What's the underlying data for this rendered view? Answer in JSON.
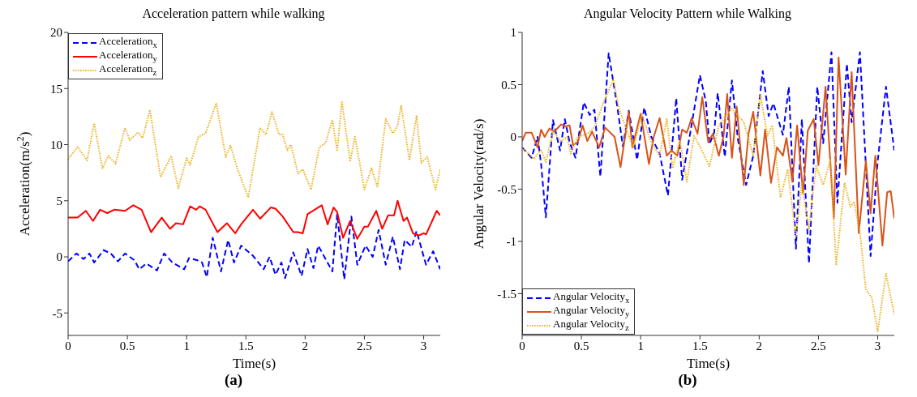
{
  "chart_data": [
    {
      "type": "line",
      "title": "Acceleration pattern while walking",
      "xlabel": "Time(s)",
      "ylabel": "Acceleration(m/s$^{2}$)",
      "xlim": [
        0,
        3.14
      ],
      "xticks": [
        0,
        0.5,
        1,
        1.5,
        2,
        2.5,
        3
      ],
      "ylim": [
        -7,
        20
      ],
      "yticks": [
        -5,
        0,
        5,
        10,
        15,
        20
      ],
      "grid": false,
      "legend": "top left",
      "marker": "none",
      "annotations": [
        "(a)"
      ],
      "series": [
        {
          "name": "Acceleration$_{x}$",
          "color": "#0000ff",
          "line_style": "dashed",
          "x": [
            0,
            0.07,
            0.13,
            0.18,
            0.22,
            0.3,
            0.36,
            0.42,
            0.48,
            0.56,
            0.6,
            0.66,
            0.75,
            0.81,
            0.88,
            0.98,
            1.02,
            1.09,
            1.13,
            1.17,
            1.22,
            1.29,
            1.35,
            1.4,
            1.46,
            1.56,
            1.65,
            1.7,
            1.75,
            1.8,
            1.83,
            1.9,
            1.97,
            2.02,
            2.07,
            2.11,
            2.23,
            2.27,
            2.33,
            2.39,
            2.44,
            2.51,
            2.57,
            2.62,
            2.68,
            2.74,
            2.8,
            2.84,
            2.9,
            2.94,
            3.02,
            3.08,
            3.14
          ],
          "values": [
            -0.4,
            0.3,
            -0.2,
            0.3,
            -0.5,
            0.6,
            0.3,
            -0.4,
            0.3,
            -0.3,
            -1.1,
            -0.6,
            -1.2,
            0.3,
            -0.5,
            -1.1,
            -0.1,
            -0.3,
            -0.5,
            -1.8,
            1.7,
            -1.3,
            1.5,
            -0.5,
            1,
            0.1,
            -1.1,
            0,
            -1.6,
            -0.5,
            -1.9,
            0.4,
            -1.7,
            0.7,
            -1,
            1,
            -1.3,
            3.8,
            -2,
            3.6,
            -0.7,
            1,
            0,
            2.4,
            -0.7,
            1.8,
            -1.1,
            1.5,
            0.9,
            2.3,
            -0.7,
            0.5,
            -1.1
          ]
        },
        {
          "name": "Acceleration$_{y}$",
          "color": "#ff0000",
          "line_style": "solid",
          "x": [
            0,
            0.08,
            0.15,
            0.21,
            0.27,
            0.33,
            0.39,
            0.48,
            0.55,
            0.62,
            0.7,
            0.79,
            0.86,
            0.91,
            0.97,
            1.03,
            1.08,
            1.11,
            1.16,
            1.26,
            1.34,
            1.41,
            1.46,
            1.56,
            1.62,
            1.71,
            1.75,
            1.81,
            1.9,
            1.94,
            1.98,
            2.02,
            2.08,
            2.14,
            2.19,
            2.24,
            2.27,
            2.32,
            2.38,
            2.44,
            2.5,
            2.53,
            2.6,
            2.65,
            2.7,
            2.75,
            2.78,
            2.83,
            2.86,
            2.91,
            2.96,
            3,
            3.02,
            3.11,
            3.14
          ],
          "values": [
            3.5,
            3.5,
            4.1,
            3.2,
            4.2,
            3.9,
            4.2,
            4.1,
            4.6,
            4.2,
            2.2,
            3.5,
            2.5,
            3,
            2.9,
            4.5,
            4.2,
            4.5,
            4.2,
            2.2,
            3,
            2.1,
            2.9,
            4.2,
            3.4,
            4.4,
            4.3,
            3.6,
            2.2,
            2.2,
            2.1,
            3.8,
            4.2,
            4.6,
            2.9,
            4.4,
            4,
            1.7,
            3.2,
            1.6,
            2.7,
            2.7,
            4.1,
            2.5,
            3.7,
            3.7,
            5,
            3.2,
            3.5,
            2.1,
            1.9,
            2.1,
            2,
            4.1,
            3.7
          ]
        },
        {
          "name": "Acceleration$_{z}$",
          "color": "#edb120",
          "line_style": "dotted",
          "x": [
            0,
            0.08,
            0.16,
            0.22,
            0.29,
            0.34,
            0.4,
            0.48,
            0.52,
            0.59,
            0.63,
            0.69,
            0.78,
            0.87,
            0.93,
            1,
            1.03,
            1.1,
            1.16,
            1.25,
            1.33,
            1.37,
            1.43,
            1.52,
            1.62,
            1.67,
            1.72,
            1.78,
            1.81,
            1.85,
            1.88,
            1.94,
            1.98,
            2.05,
            2.12,
            2.17,
            2.23,
            2.27,
            2.31,
            2.38,
            2.42,
            2.5,
            2.56,
            2.61,
            2.68,
            2.74,
            2.78,
            2.81,
            2.88,
            2.94,
            2.98,
            3.03,
            3.1,
            3.14
          ],
          "values": [
            8.7,
            9.8,
            8.6,
            11.9,
            7.9,
            9,
            8.3,
            11.5,
            10.4,
            11.1,
            10.6,
            13.1,
            7.1,
            9,
            6.1,
            8.8,
            8.2,
            10.7,
            11,
            13.7,
            8.9,
            9.9,
            7.8,
            5.3,
            11.5,
            10.9,
            12.9,
            10.9,
            10.9,
            9.5,
            10,
            7.4,
            7.8,
            6,
            9.8,
            10.1,
            12.2,
            9.4,
            13.8,
            8.5,
            10.7,
            6,
            7.9,
            6.2,
            12.3,
            11,
            11.7,
            13.5,
            8.6,
            12.6,
            8.4,
            8.9,
            6,
            7.8
          ]
        }
      ]
    },
    {
      "type": "line",
      "title": "Angular Velocity Pattern while Walking",
      "xlabel": "Time(s)",
      "ylabel": "Angular Velocity(rad/s)",
      "xlim": [
        0,
        3.14
      ],
      "xticks": [
        0,
        0.5,
        1,
        1.5,
        2,
        2.5,
        3
      ],
      "ylim": [
        -1.9,
        1
      ],
      "yticks": [
        -1.5,
        -1,
        -0.5,
        0,
        0.5,
        1
      ],
      "grid": false,
      "legend": "bottom left",
      "marker": "none",
      "annotations": [
        "(b)"
      ],
      "series": [
        {
          "name": "Angular Velocity$_{x}$",
          "color": "#0000ff",
          "line_style": "dashed",
          "x": [
            0,
            0.08,
            0.13,
            0.16,
            0.2,
            0.26,
            0.32,
            0.36,
            0.4,
            0.45,
            0.52,
            0.57,
            0.61,
            0.66,
            0.73,
            0.8,
            0.85,
            0.9,
            0.97,
            1.03,
            1.09,
            1.16,
            1.23,
            1.3,
            1.35,
            1.42,
            1.5,
            1.55,
            1.58,
            1.62,
            1.65,
            1.71,
            1.77,
            1.82,
            1.89,
            1.95,
            2.03,
            2.08,
            2.12,
            2.2,
            2.25,
            2.31,
            2.36,
            2.42,
            2.49,
            2.54,
            2.61,
            2.66,
            2.74,
            2.78,
            2.85,
            2.94,
            3,
            3.07,
            3.14
          ],
          "values": [
            -0.1,
            -0.2,
            0,
            -0.26,
            -0.77,
            0.16,
            -0.13,
            0.17,
            -0.05,
            -0.2,
            0.33,
            0.21,
            0.26,
            -0.38,
            0.8,
            0.31,
            -0.09,
            0.25,
            -0.22,
            0.28,
            0,
            -0.16,
            -0.56,
            0.37,
            -0.41,
            0.05,
            0.59,
            0.34,
            -0.07,
            0.04,
            0.42,
            -0.19,
            0.54,
            -0.02,
            -0.46,
            -0.18,
            0.63,
            0.2,
            0.32,
            0.02,
            0.48,
            -1.07,
            0.17,
            -1.21,
            0.48,
            -0.06,
            0.81,
            -0.63,
            0.7,
            0.14,
            0.81,
            -1.14,
            -0.23,
            0.48,
            -0.13
          ]
        },
        {
          "name": "Angular Velocity$_{y}$",
          "color": "#d95319",
          "line_style": "solid",
          "x": [
            0,
            0.03,
            0.08,
            0.13,
            0.16,
            0.19,
            0.23,
            0.27,
            0.33,
            0.36,
            0.4,
            0.43,
            0.47,
            0.51,
            0.55,
            0.59,
            0.65,
            0.7,
            0.78,
            0.83,
            0.9,
            0.93,
            1,
            1.07,
            1.11,
            1.16,
            1.22,
            1.26,
            1.31,
            1.35,
            1.39,
            1.43,
            1.48,
            1.52,
            1.57,
            1.61,
            1.66,
            1.7,
            1.73,
            1.77,
            1.81,
            1.87,
            1.91,
            1.95,
            2.01,
            2.05,
            2.1,
            2.15,
            2.2,
            2.23,
            2.28,
            2.32,
            2.37,
            2.41,
            2.46,
            2.5,
            2.56,
            2.63,
            2.67,
            2.73,
            2.78,
            2.84,
            2.9,
            2.94,
            2.98,
            3.04,
            3.08,
            3.11,
            3.14
          ],
          "values": [
            -0.04,
            0.04,
            0.04,
            -0.1,
            0.07,
            0,
            0.08,
            0.05,
            0.12,
            0.1,
            0.11,
            -0.08,
            -0.05,
            0.11,
            -0.04,
            0.05,
            -0.1,
            0.09,
            0,
            -0.29,
            0.24,
            -0.1,
            0.22,
            -0.26,
            0,
            0.18,
            -0.18,
            -0.13,
            -0.18,
            0.07,
            0.04,
            0.18,
            0.03,
            0.38,
            -0.05,
            0.03,
            -0.18,
            0.01,
            0.41,
            -0.2,
            0.29,
            -0.46,
            0.03,
            0.24,
            -0.37,
            0.07,
            -0.44,
            -0.1,
            -0.18,
            -0.01,
            -0.43,
            0.11,
            -0.54,
            0.06,
            0.17,
            -0.27,
            0.48,
            -0.78,
            0.76,
            -0.36,
            0.62,
            -0.92,
            -0.23,
            -0.73,
            -0.18,
            -1.04,
            -0.53,
            -0.52,
            -0.78
          ]
        },
        {
          "name": "Angular Velocity$_{z}$",
          "color": "#edb120",
          "line_style": "dotted",
          "x": [
            0,
            0.1,
            0.16,
            0.2,
            0.26,
            0.33,
            0.38,
            0.41,
            0.47,
            0.55,
            0.61,
            0.68,
            0.77,
            0.82,
            0.89,
            0.94,
            1.01,
            1.08,
            1.16,
            1.22,
            1.27,
            1.33,
            1.39,
            1.45,
            1.5,
            1.58,
            1.66,
            1.77,
            1.87,
            1.95,
            2.01,
            2.07,
            2.11,
            2.18,
            2.24,
            2.31,
            2.36,
            2.42,
            2.48,
            2.54,
            2.6,
            2.65,
            2.72,
            2.77,
            2.8,
            2.85,
            2.9,
            2.95,
            3,
            3.07,
            3.14
          ],
          "values": [
            -0.1,
            -0.21,
            -0.12,
            -0.24,
            0.05,
            -0.04,
            0,
            -0.16,
            0,
            0.03,
            0.09,
            0.31,
            0.55,
            0.26,
            0.04,
            -0.1,
            0.22,
            -0.03,
            -0.18,
            0.17,
            -0.3,
            -0.03,
            -0.43,
            0.01,
            -0.09,
            -0.28,
            0.11,
            0.27,
            0.14,
            -0.18,
            0.4,
            0.01,
            0.11,
            -0.58,
            -0.31,
            -0.96,
            -0.44,
            -0.88,
            -0.28,
            -0.46,
            -0.22,
            -1.23,
            -0.44,
            -0.67,
            -0.62,
            -0.91,
            -1.46,
            -1.54,
            -1.86,
            -1.31,
            -1.7
          ]
        }
      ]
    }
  ]
}
